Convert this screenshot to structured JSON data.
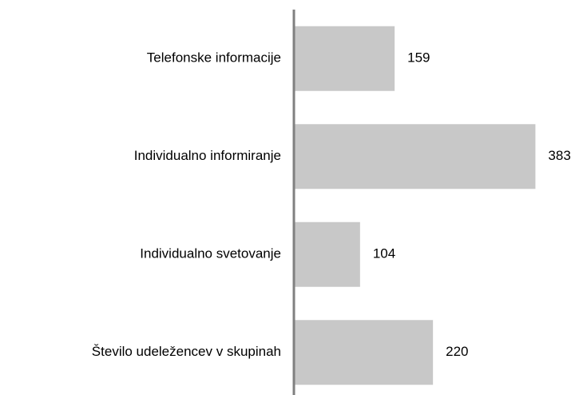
{
  "chart_data": {
    "type": "bar",
    "orientation": "horizontal",
    "categories": [
      "Telefonske informacije",
      "Individualno informiranje",
      "Individualno svetovanje",
      "Število udeležencev v skupinah"
    ],
    "values": [
      159,
      383,
      104,
      220
    ],
    "color": "#c8c8c8"
  }
}
